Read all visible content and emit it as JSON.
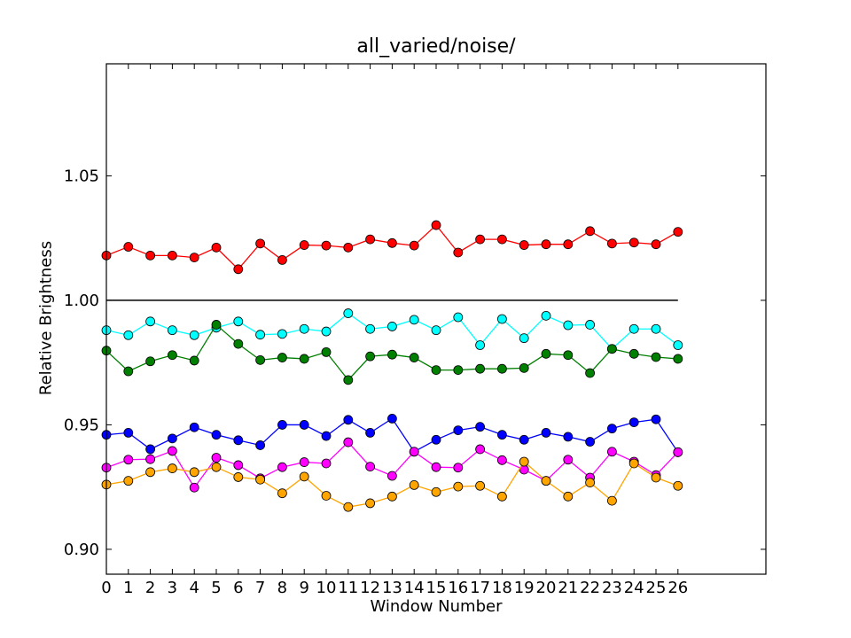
{
  "chart_data": {
    "type": "line",
    "title": "all_varied/noise/",
    "xlabel": "Window Number",
    "ylabel": "Relative Brightness",
    "xlim": [
      0,
      30
    ],
    "ylim": [
      0.89,
      1.095
    ],
    "x": [
      0,
      1,
      2,
      3,
      4,
      5,
      6,
      7,
      8,
      9,
      10,
      11,
      12,
      13,
      14,
      15,
      16,
      17,
      18,
      19,
      20,
      21,
      22,
      23,
      24,
      25,
      26
    ],
    "xticks": [
      0,
      1,
      2,
      3,
      4,
      5,
      6,
      7,
      8,
      9,
      10,
      11,
      12,
      13,
      14,
      15,
      16,
      17,
      18,
      19,
      20,
      21,
      22,
      23,
      24,
      25,
      26
    ],
    "yticks": [
      0.9,
      0.95,
      1.0,
      1.05
    ],
    "ytick_labels": [
      "0.90",
      "0.95",
      "1.00",
      "1.05"
    ],
    "grid": false,
    "reference_line": {
      "y": 1.0,
      "x": [
        0,
        26
      ],
      "color": "#000000"
    },
    "series": [
      {
        "color": "#ff0000",
        "values": [
          1.018,
          1.0215,
          1.018,
          1.018,
          1.0172,
          1.0212,
          1.0125,
          1.0228,
          1.0162,
          1.0222,
          1.022,
          1.0212,
          1.0245,
          1.023,
          1.022,
          1.0302,
          1.0192,
          1.0245,
          1.0245,
          1.0222,
          1.0225,
          1.0225,
          1.0278,
          1.0228,
          1.0232,
          1.0225,
          1.0275
        ]
      },
      {
        "color": "#00ffff",
        "values": [
          0.988,
          0.986,
          0.9915,
          0.988,
          0.986,
          0.989,
          0.9915,
          0.9862,
          0.9865,
          0.9885,
          0.9875,
          0.9948,
          0.9885,
          0.9895,
          0.9922,
          0.988,
          0.9932,
          0.982,
          0.9925,
          0.9848,
          0.9938,
          0.99,
          0.9902,
          0.9805,
          0.9885,
          0.9885,
          0.982
        ]
      },
      {
        "color": "#008000",
        "values": [
          0.9798,
          0.9715,
          0.9755,
          0.978,
          0.9758,
          0.9902,
          0.9825,
          0.976,
          0.977,
          0.9765,
          0.9792,
          0.968,
          0.9775,
          0.9782,
          0.977,
          0.972,
          0.972,
          0.9725,
          0.9725,
          0.9728,
          0.9785,
          0.978,
          0.9708,
          0.9805,
          0.9785,
          0.9772,
          0.9765
        ]
      },
      {
        "color": "#0000ff",
        "values": [
          0.946,
          0.9468,
          0.9402,
          0.9445,
          0.949,
          0.946,
          0.9438,
          0.9418,
          0.95,
          0.95,
          0.9455,
          0.952,
          0.9468,
          0.9525,
          0.9392,
          0.944,
          0.9478,
          0.9492,
          0.946,
          0.944,
          0.9468,
          0.9452,
          0.9432,
          0.9485,
          0.951,
          0.9522,
          0.939
        ]
      },
      {
        "color": "#ff00ff",
        "values": [
          0.9328,
          0.936,
          0.9362,
          0.9395,
          0.9248,
          0.9368,
          0.9338,
          0.9285,
          0.933,
          0.935,
          0.9345,
          0.943,
          0.9332,
          0.9295,
          0.9392,
          0.933,
          0.9328,
          0.9402,
          0.9358,
          0.932,
          0.9275,
          0.936,
          0.9288,
          0.9392,
          0.9352,
          0.9298,
          0.939
        ]
      },
      {
        "color": "#ffa500",
        "values": [
          0.926,
          0.9275,
          0.931,
          0.9325,
          0.931,
          0.933,
          0.929,
          0.928,
          0.9225,
          0.9292,
          0.9215,
          0.917,
          0.9185,
          0.9212,
          0.9258,
          0.923,
          0.9252,
          0.9255,
          0.9212,
          0.9352,
          0.9275,
          0.9212,
          0.9268,
          0.9195,
          0.9345,
          0.9288,
          0.9255
        ]
      }
    ]
  }
}
